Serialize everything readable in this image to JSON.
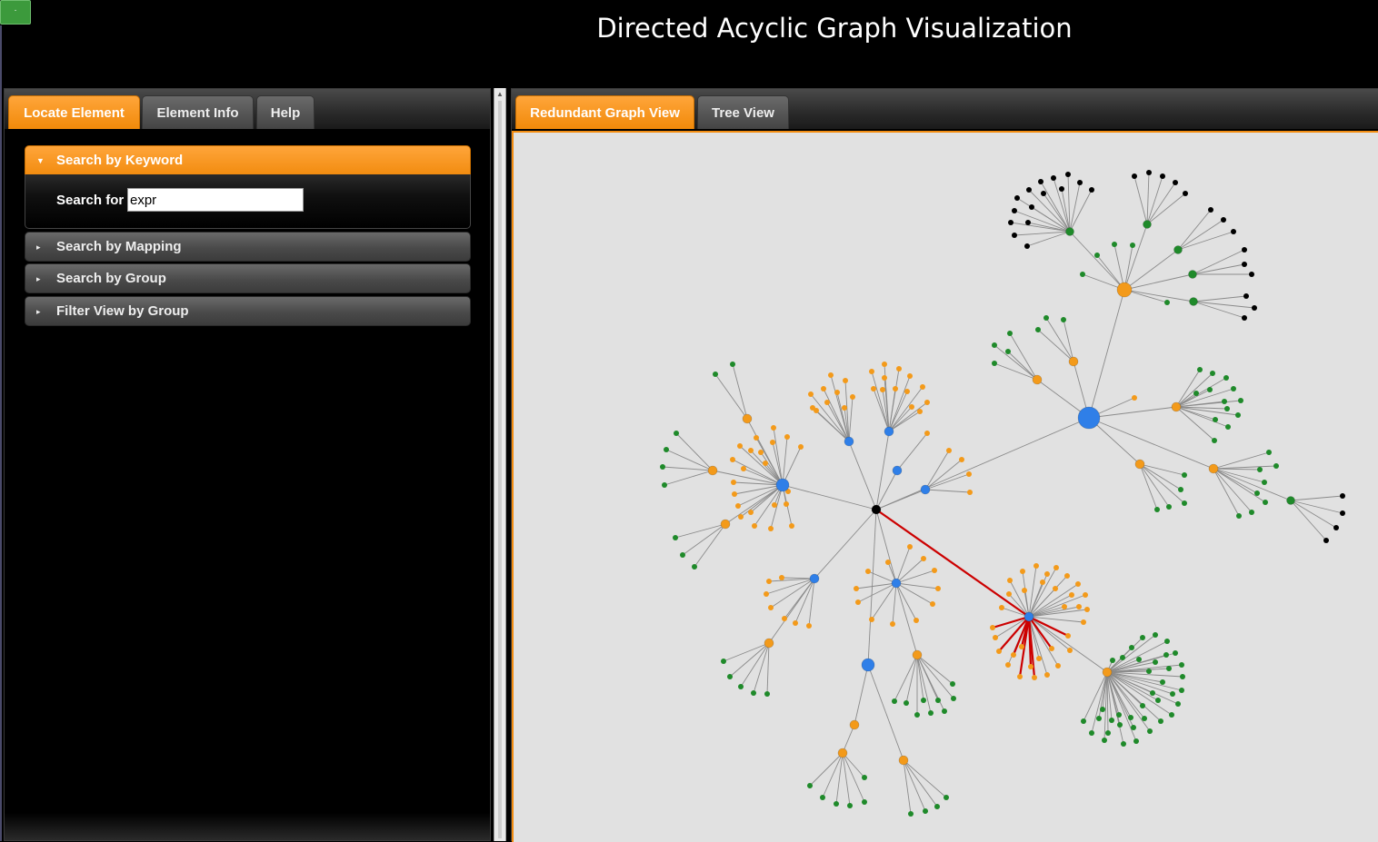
{
  "app": {
    "title": "Directed Acyclic Graph Visualization",
    "logo_text": "·"
  },
  "left_panel": {
    "tabs": [
      {
        "label": "Locate Element",
        "active": true
      },
      {
        "label": "Element Info",
        "active": false
      },
      {
        "label": "Help",
        "active": false
      }
    ],
    "accordion": [
      {
        "label": "Search by Keyword",
        "expanded": true
      },
      {
        "label": "Search by Mapping",
        "expanded": false
      },
      {
        "label": "Search by Group",
        "expanded": false
      },
      {
        "label": "Filter View by Group",
        "expanded": false
      }
    ],
    "search": {
      "label": "Search for",
      "value": "expr"
    }
  },
  "right_panel": {
    "tabs": [
      {
        "label": "Redundant Graph View",
        "active": true
      },
      {
        "label": "Tree View",
        "active": false
      }
    ]
  },
  "graph": {
    "colors": {
      "blue": "#2f7fe8",
      "orange": "#f39a1a",
      "green": "#1f8a2a",
      "black": "#000000",
      "edge": "#8a8a8a",
      "highlight": "#cc0000"
    },
    "node_types": [
      "root",
      "blue_hub",
      "orange_hub",
      "green_hub",
      "leaf_orange",
      "leaf_green",
      "leaf_black"
    ],
    "highlighted_path": "root-to-hub7"
  }
}
